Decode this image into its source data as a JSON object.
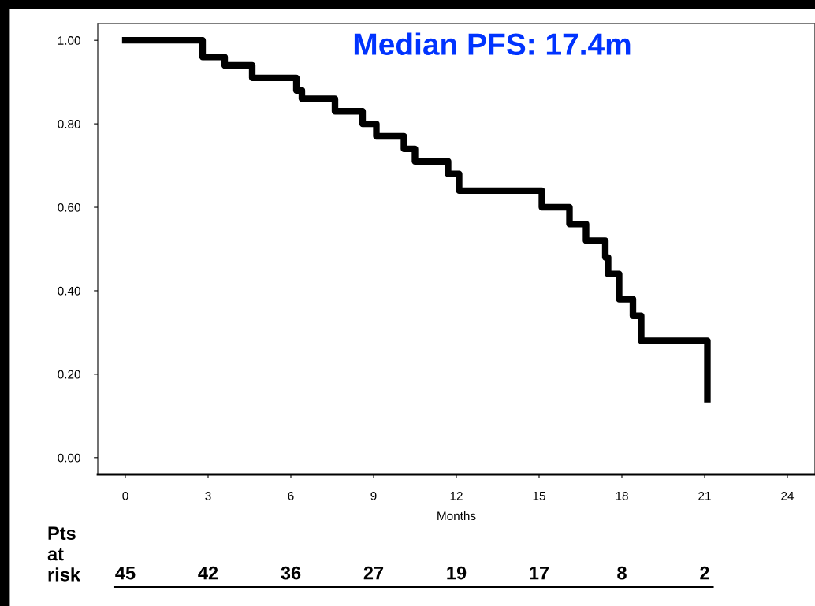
{
  "chart_data": {
    "type": "step",
    "xlabel": "Months",
    "x": [
      0,
      2.8,
      3.6,
      4.6,
      6.2,
      6.4,
      7.6,
      8.6,
      9.1,
      10.1,
      10.5,
      11.7,
      12.1,
      15.1,
      16.1,
      16.7,
      17.4,
      17.5,
      17.9,
      18.4,
      18.7,
      21.1
    ],
    "series": [
      {
        "color": "#000000",
        "values": [
          1.0,
          0.96,
          0.94,
          0.91,
          0.88,
          0.86,
          0.83,
          0.8,
          0.77,
          0.74,
          0.71,
          0.68,
          0.64,
          0.6,
          0.56,
          0.52,
          0.48,
          0.44,
          0.38,
          0.34,
          0.28,
          0.14
        ]
      }
    ],
    "xlim": [
      -1,
      25
    ],
    "xticks": [
      0,
      3,
      6,
      9,
      12,
      15,
      18,
      21,
      24
    ],
    "ylim": [
      -0.04,
      1.04
    ],
    "yticks": [
      {
        "value": 0,
        "label": "0.00"
      },
      {
        "value": 0.2,
        "label": "0.20"
      },
      {
        "value": 0.4,
        "label": "0.40"
      },
      {
        "value": 0.6,
        "label": "0.60"
      },
      {
        "value": 0.8,
        "label": "0.80"
      },
      {
        "value": 1.0,
        "label": "1.00"
      }
    ],
    "grid": false,
    "legend": false,
    "annotations": [
      "Median PFS: 17.4m",
      "Pts\nat\nrisk",
      "45",
      "42",
      "36",
      "27",
      "19",
      "17",
      "8",
      "2"
    ]
  }
}
